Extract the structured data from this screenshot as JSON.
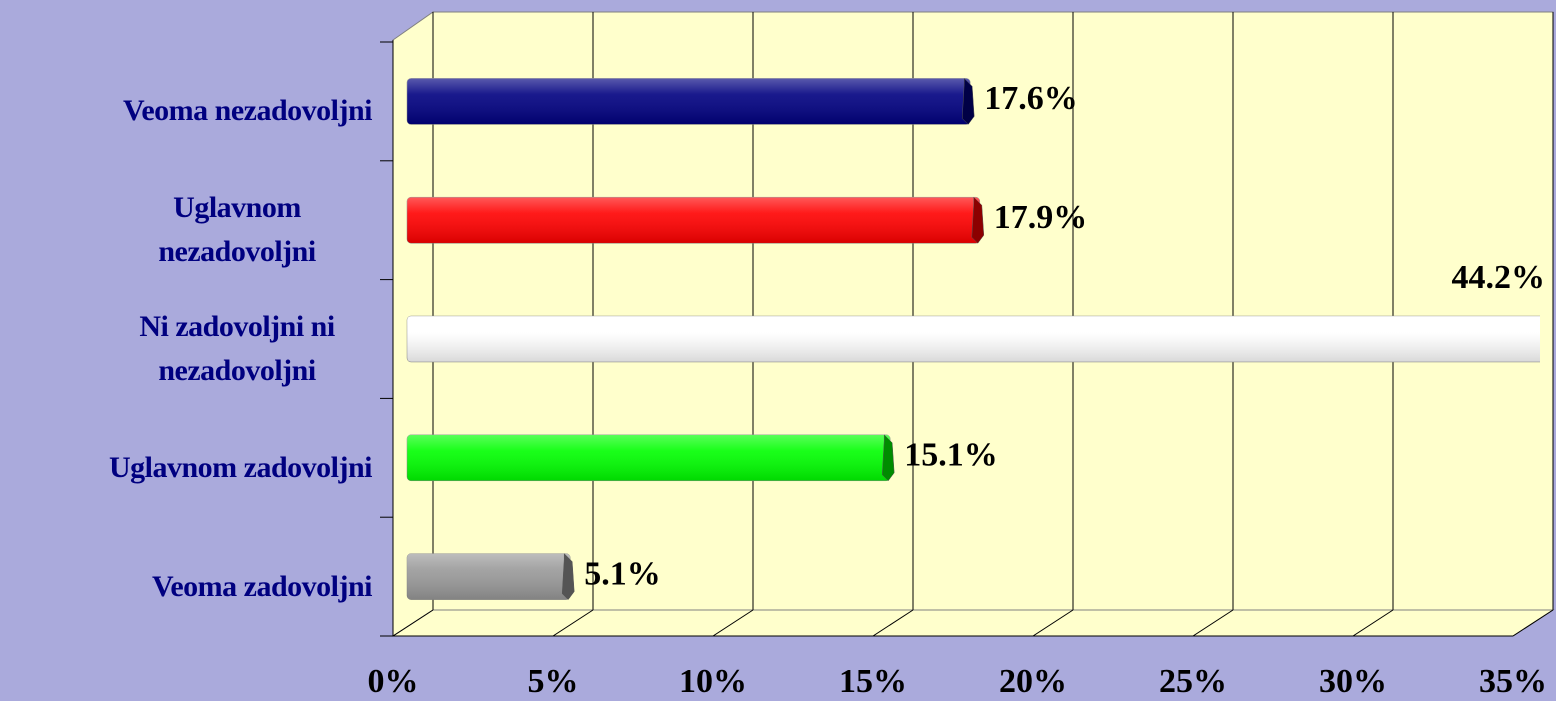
{
  "chart_data": {
    "type": "bar3d_horizontal",
    "categories": [
      "Veoma nezadovoljni",
      "Uglavnom nezadovoljni",
      "Ni zadovoljni ni nezadovoljni",
      "Uglavnom zadovoljni",
      "Veoma zadovoljni"
    ],
    "values": [
      17.6,
      17.9,
      44.2,
      15.1,
      5.1
    ],
    "value_labels": [
      "17.6%",
      "17.9%",
      "44.2%",
      "15.1%",
      "5.1%"
    ],
    "colors": [
      "#000080",
      "#ff0000",
      "#ffffff",
      "#00ff00",
      "#999999"
    ],
    "xlim": [
      0,
      35
    ],
    "xticks": [
      {
        "value": 0,
        "label": "0%"
      },
      {
        "value": 5,
        "label": "5%"
      },
      {
        "value": 10,
        "label": "10%"
      },
      {
        "value": 15,
        "label": "15%"
      },
      {
        "value": 20,
        "label": "20%"
      },
      {
        "value": 25,
        "label": "25%"
      },
      {
        "value": 30,
        "label": "30%"
      },
      {
        "value": 35,
        "label": "35%"
      }
    ],
    "grid": true
  }
}
